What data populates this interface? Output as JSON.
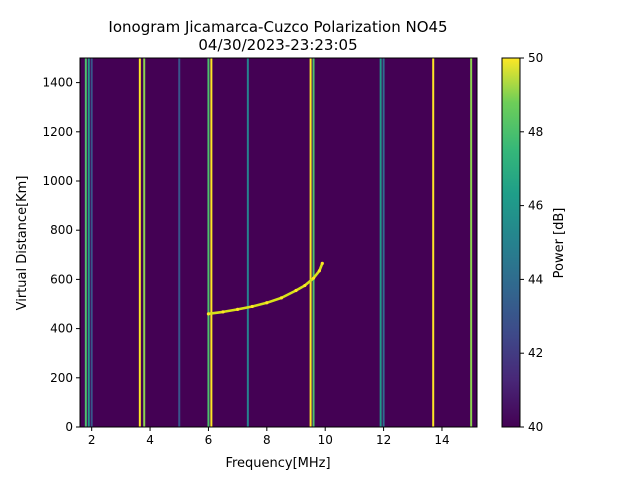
{
  "chart_data": {
    "type": "heatmap",
    "title": "Ionogram Jicamarca-Cuzco Polarization NO45",
    "subtitle": "04/30/2023-23:23:05",
    "xlabel": "Frequency[MHz]",
    "ylabel": "Virtual Distance[Km]",
    "xlim": [
      1.6,
      15.2
    ],
    "ylim": [
      0,
      1500
    ],
    "x_ticks": [
      2,
      4,
      6,
      8,
      10,
      12,
      14
    ],
    "y_ticks": [
      0,
      200,
      400,
      600,
      800,
      1000,
      1200,
      1400
    ],
    "colorbar": {
      "label": "Power [dB]",
      "min": 40,
      "max": 50,
      "ticks": [
        40,
        42,
        44,
        46,
        48,
        50
      ],
      "colormap": "viridis"
    },
    "background_color": "#440154",
    "interference_lines": [
      {
        "frequency": 1.8,
        "power": 48
      },
      {
        "frequency": 1.9,
        "power": 46
      },
      {
        "frequency": 2.0,
        "power": 43
      },
      {
        "frequency": 3.65,
        "power": 50
      },
      {
        "frequency": 3.8,
        "power": 49
      },
      {
        "frequency": 5.0,
        "power": 43
      },
      {
        "frequency": 6.0,
        "power": 48
      },
      {
        "frequency": 6.1,
        "power": 50
      },
      {
        "frequency": 7.35,
        "power": 45
      },
      {
        "frequency": 9.5,
        "power": 50
      },
      {
        "frequency": 9.6,
        "power": 48
      },
      {
        "frequency": 11.9,
        "power": 46
      },
      {
        "frequency": 12.0,
        "power": 44
      },
      {
        "frequency": 13.7,
        "power": 50
      },
      {
        "frequency": 15.0,
        "power": 49
      }
    ],
    "echo_trace": [
      {
        "frequency": 6.0,
        "distance": 460
      },
      {
        "frequency": 6.5,
        "distance": 468
      },
      {
        "frequency": 7.0,
        "distance": 478
      },
      {
        "frequency": 7.5,
        "distance": 490
      },
      {
        "frequency": 8.0,
        "distance": 505
      },
      {
        "frequency": 8.5,
        "distance": 525
      },
      {
        "frequency": 9.0,
        "distance": 555
      },
      {
        "frequency": 9.3,
        "distance": 575
      },
      {
        "frequency": 9.6,
        "distance": 605
      },
      {
        "frequency": 9.8,
        "distance": 635
      },
      {
        "frequency": 9.9,
        "distance": 665
      }
    ]
  }
}
